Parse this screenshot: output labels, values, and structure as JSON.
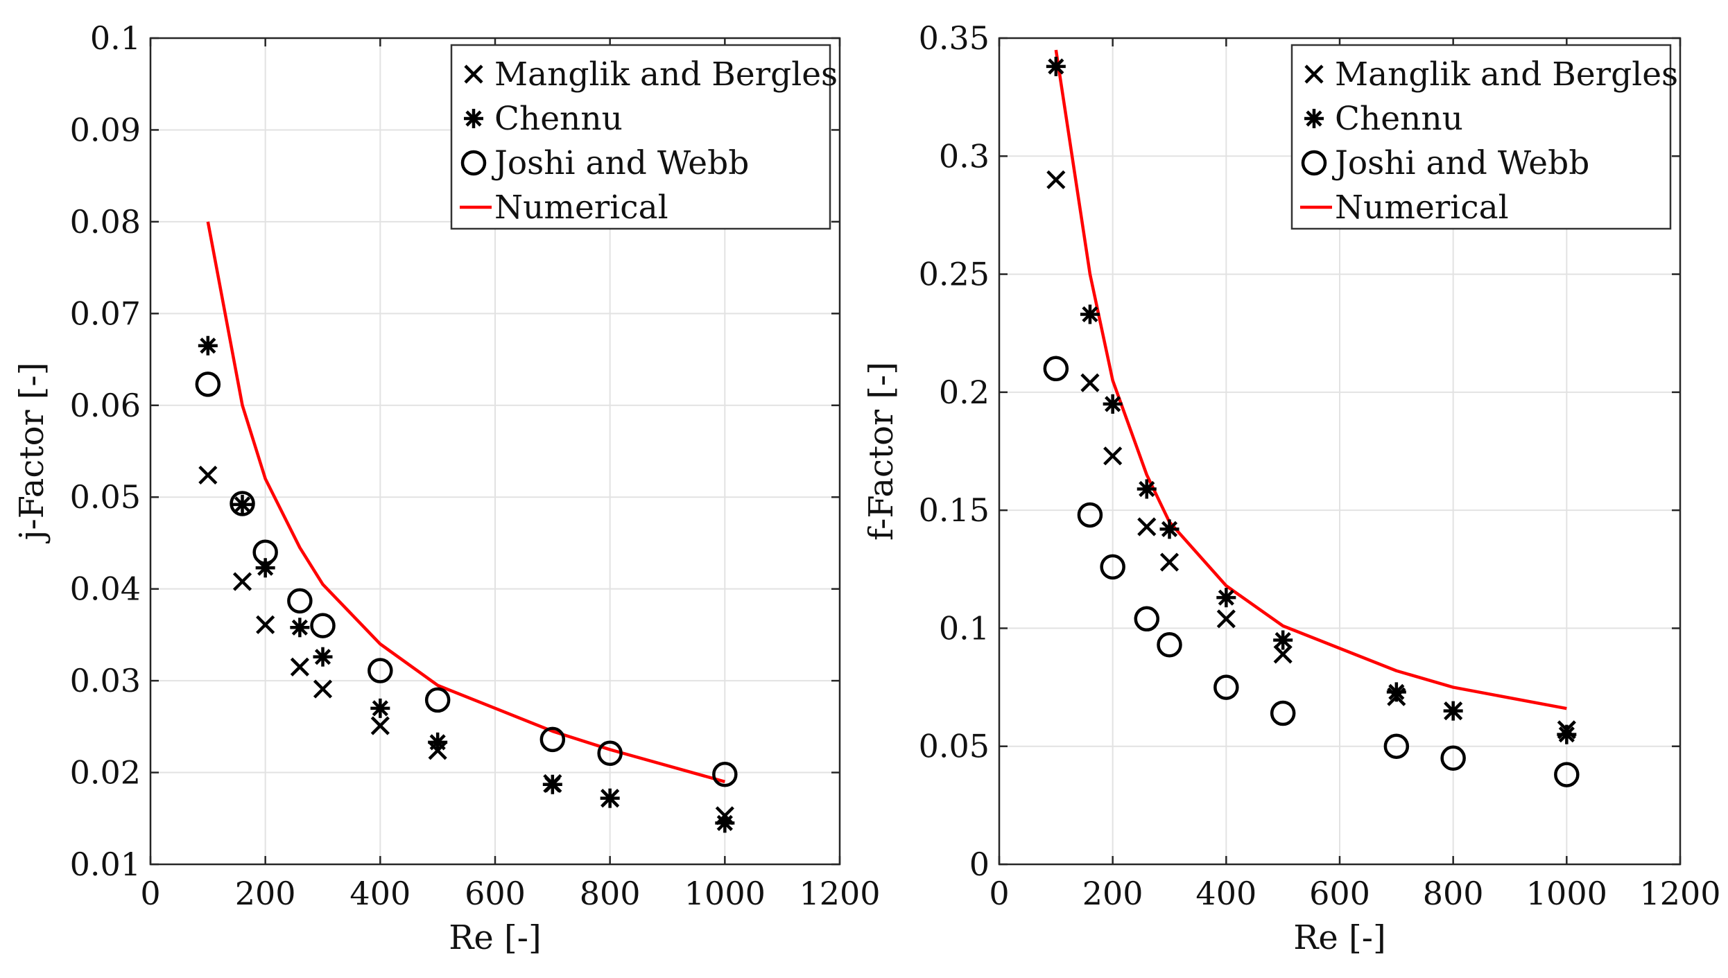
{
  "chart_data": [
    {
      "type": "scatter",
      "xlabel": "Re [-]",
      "ylabel": "j-Factor [-]",
      "xlim": [
        0,
        1200
      ],
      "ylim": [
        0.01,
        0.1
      ],
      "xticks": [
        0,
        200,
        400,
        600,
        800,
        1000,
        1200
      ],
      "yticks": [
        0.01,
        0.02,
        0.03,
        0.04,
        0.05,
        0.06,
        0.07,
        0.08,
        0.09,
        0.1
      ],
      "xtick_labels": [
        "0",
        "200",
        "400",
        "600",
        "800",
        "1000",
        "1200"
      ],
      "ytick_labels": [
        "0.01",
        "0.02",
        "0.03",
        "0.04",
        "0.05",
        "0.06",
        "0.07",
        "0.08",
        "0.09",
        "0.1"
      ],
      "grid": true,
      "legend_position": "top-right",
      "series": [
        {
          "name": "Manglik and Bergles",
          "marker": "x",
          "color": "#000000",
          "x": [
            100,
            160,
            200,
            260,
            300,
            400,
            500,
            700,
            800,
            1000
          ],
          "y": [
            0.0524,
            0.0408,
            0.0361,
            0.0315,
            0.0291,
            0.0251,
            0.0224,
            0.0188,
            0.0172,
            0.0153
          ]
        },
        {
          "name": "Chennu",
          "marker": "asterisk",
          "color": "#000000",
          "x": [
            100,
            160,
            200,
            260,
            300,
            400,
            500,
            700,
            800,
            1000
          ],
          "y": [
            0.0665,
            0.0492,
            0.0423,
            0.0358,
            0.0326,
            0.027,
            0.0233,
            0.0187,
            0.0172,
            0.0145
          ]
        },
        {
          "name": "Joshi and Webb",
          "marker": "circle",
          "color": "#000000",
          "x": [
            100,
            160,
            200,
            260,
            300,
            400,
            500,
            700,
            800,
            1000
          ],
          "y": [
            0.0623,
            0.0493,
            0.044,
            0.0387,
            0.036,
            0.0311,
            0.0279,
            0.0236,
            0.0221,
            0.0198
          ]
        },
        {
          "name": "Numerical",
          "marker": "line",
          "color": "#ff0000",
          "x": [
            100,
            160,
            200,
            260,
            300,
            400,
            500,
            700,
            800,
            1000
          ],
          "y": [
            0.08,
            0.06,
            0.052,
            0.0445,
            0.0405,
            0.034,
            0.0295,
            0.0245,
            0.0225,
            0.019
          ]
        }
      ]
    },
    {
      "type": "scatter",
      "xlabel": "Re [-]",
      "ylabel": "f-Factor [-]",
      "xlim": [
        0,
        1200
      ],
      "ylim": [
        0,
        0.35
      ],
      "xticks": [
        0,
        200,
        400,
        600,
        800,
        1000,
        1200
      ],
      "yticks": [
        0,
        0.05,
        0.1,
        0.15,
        0.2,
        0.25,
        0.3,
        0.35
      ],
      "xtick_labels": [
        "0",
        "200",
        "400",
        "600",
        "800",
        "1000",
        "1200"
      ],
      "ytick_labels": [
        "0",
        "0.05",
        "0.1",
        "0.15",
        "0.2",
        "0.25",
        "0.3",
        "0.35"
      ],
      "grid": true,
      "legend_position": "top-right",
      "series": [
        {
          "name": "Manglik and Bergles",
          "marker": "x",
          "color": "#000000",
          "x": [
            100,
            160,
            200,
            260,
            300,
            400,
            500,
            700,
            800,
            1000
          ],
          "y": [
            0.29,
            0.204,
            0.173,
            0.143,
            0.128,
            0.104,
            0.089,
            0.071,
            0.065,
            0.057
          ]
        },
        {
          "name": "Chennu",
          "marker": "asterisk",
          "color": "#000000",
          "x": [
            100,
            160,
            200,
            260,
            300,
            400,
            500,
            700,
            800,
            1000
          ],
          "y": [
            0.338,
            0.233,
            0.195,
            0.159,
            0.142,
            0.113,
            0.095,
            0.073,
            0.065,
            0.055
          ]
        },
        {
          "name": "Joshi and Webb",
          "marker": "circle",
          "color": "#000000",
          "x": [
            100,
            160,
            200,
            260,
            300,
            400,
            500,
            700,
            800,
            1000
          ],
          "y": [
            0.21,
            0.148,
            0.126,
            0.104,
            0.093,
            0.075,
            0.064,
            0.05,
            0.045,
            0.038
          ]
        },
        {
          "name": "Numerical",
          "marker": "line",
          "color": "#ff0000",
          "x": [
            100,
            160,
            200,
            260,
            300,
            400,
            500,
            700,
            800,
            1000
          ],
          "y": [
            0.345,
            0.25,
            0.205,
            0.165,
            0.145,
            0.118,
            0.101,
            0.082,
            0.075,
            0.066
          ]
        }
      ]
    }
  ]
}
